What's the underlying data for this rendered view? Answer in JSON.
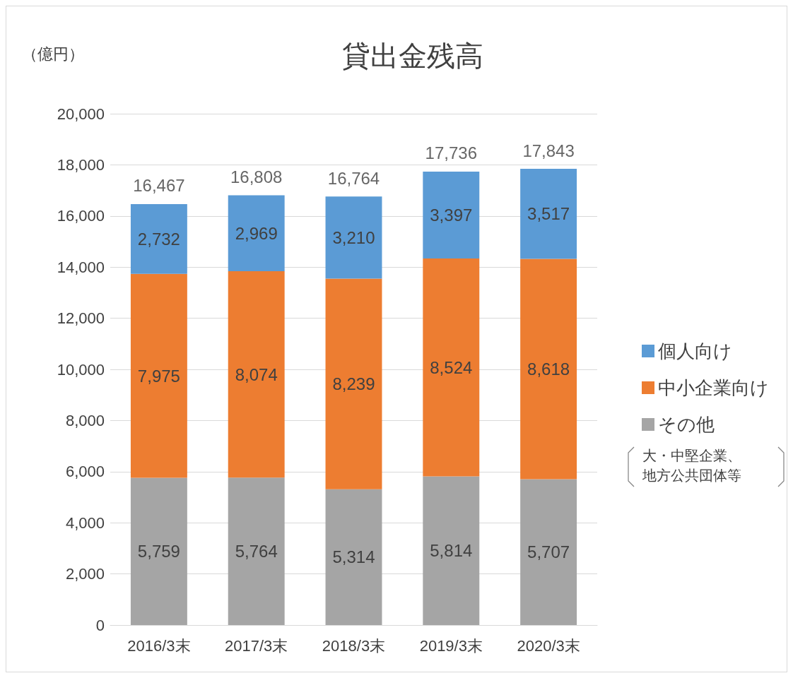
{
  "chart_data": {
    "type": "bar",
    "title": "貸出金残高",
    "ylabel": "（億円）",
    "categories": [
      "2016/3末",
      "2017/3末",
      "2018/3末",
      "2019/3末",
      "2020/3末"
    ],
    "stacked": true,
    "series": [
      {
        "name": "その他",
        "color": "#a5a5a5",
        "values": [
          5759,
          5764,
          5314,
          5814,
          5707
        ],
        "value_labels": [
          "5,759",
          "5,764",
          "5,314",
          "5,814",
          "5,707"
        ]
      },
      {
        "name": "中小企業向け",
        "color": "#ed7d31",
        "values": [
          7975,
          8074,
          8239,
          8524,
          8618
        ],
        "value_labels": [
          "7,975",
          "8,074",
          "8,239",
          "8,524",
          "8,618"
        ]
      },
      {
        "name": "個人向け",
        "color": "#5b9bd5",
        "values": [
          2732,
          2969,
          3210,
          3397,
          3517
        ],
        "value_labels": [
          "2,732",
          "2,969",
          "3,210",
          "3,397",
          "3,517"
        ]
      }
    ],
    "totals": [
      "16,467",
      "16,808",
      "16,764",
      "17,736",
      "17,843"
    ],
    "annotations": [
      "大・中堅企業、地方公共団体等"
    ],
    "ylim": [
      0,
      20000
    ],
    "yticks": [
      {
        "value": 0,
        "label": "0"
      },
      {
        "value": 2000,
        "label": "2,000"
      },
      {
        "value": 4000,
        "label": "4,000"
      },
      {
        "value": 6000,
        "label": "6,000"
      },
      {
        "value": 8000,
        "label": "8,000"
      },
      {
        "value": 10000,
        "label": "10,000"
      },
      {
        "value": 12000,
        "label": "12,000"
      },
      {
        "value": 14000,
        "label": "14,000"
      },
      {
        "value": 16000,
        "label": "16,000"
      },
      {
        "value": 18000,
        "label": "18,000"
      },
      {
        "value": 20000,
        "label": "20,000"
      }
    ],
    "grid": "y",
    "legend": "right"
  }
}
